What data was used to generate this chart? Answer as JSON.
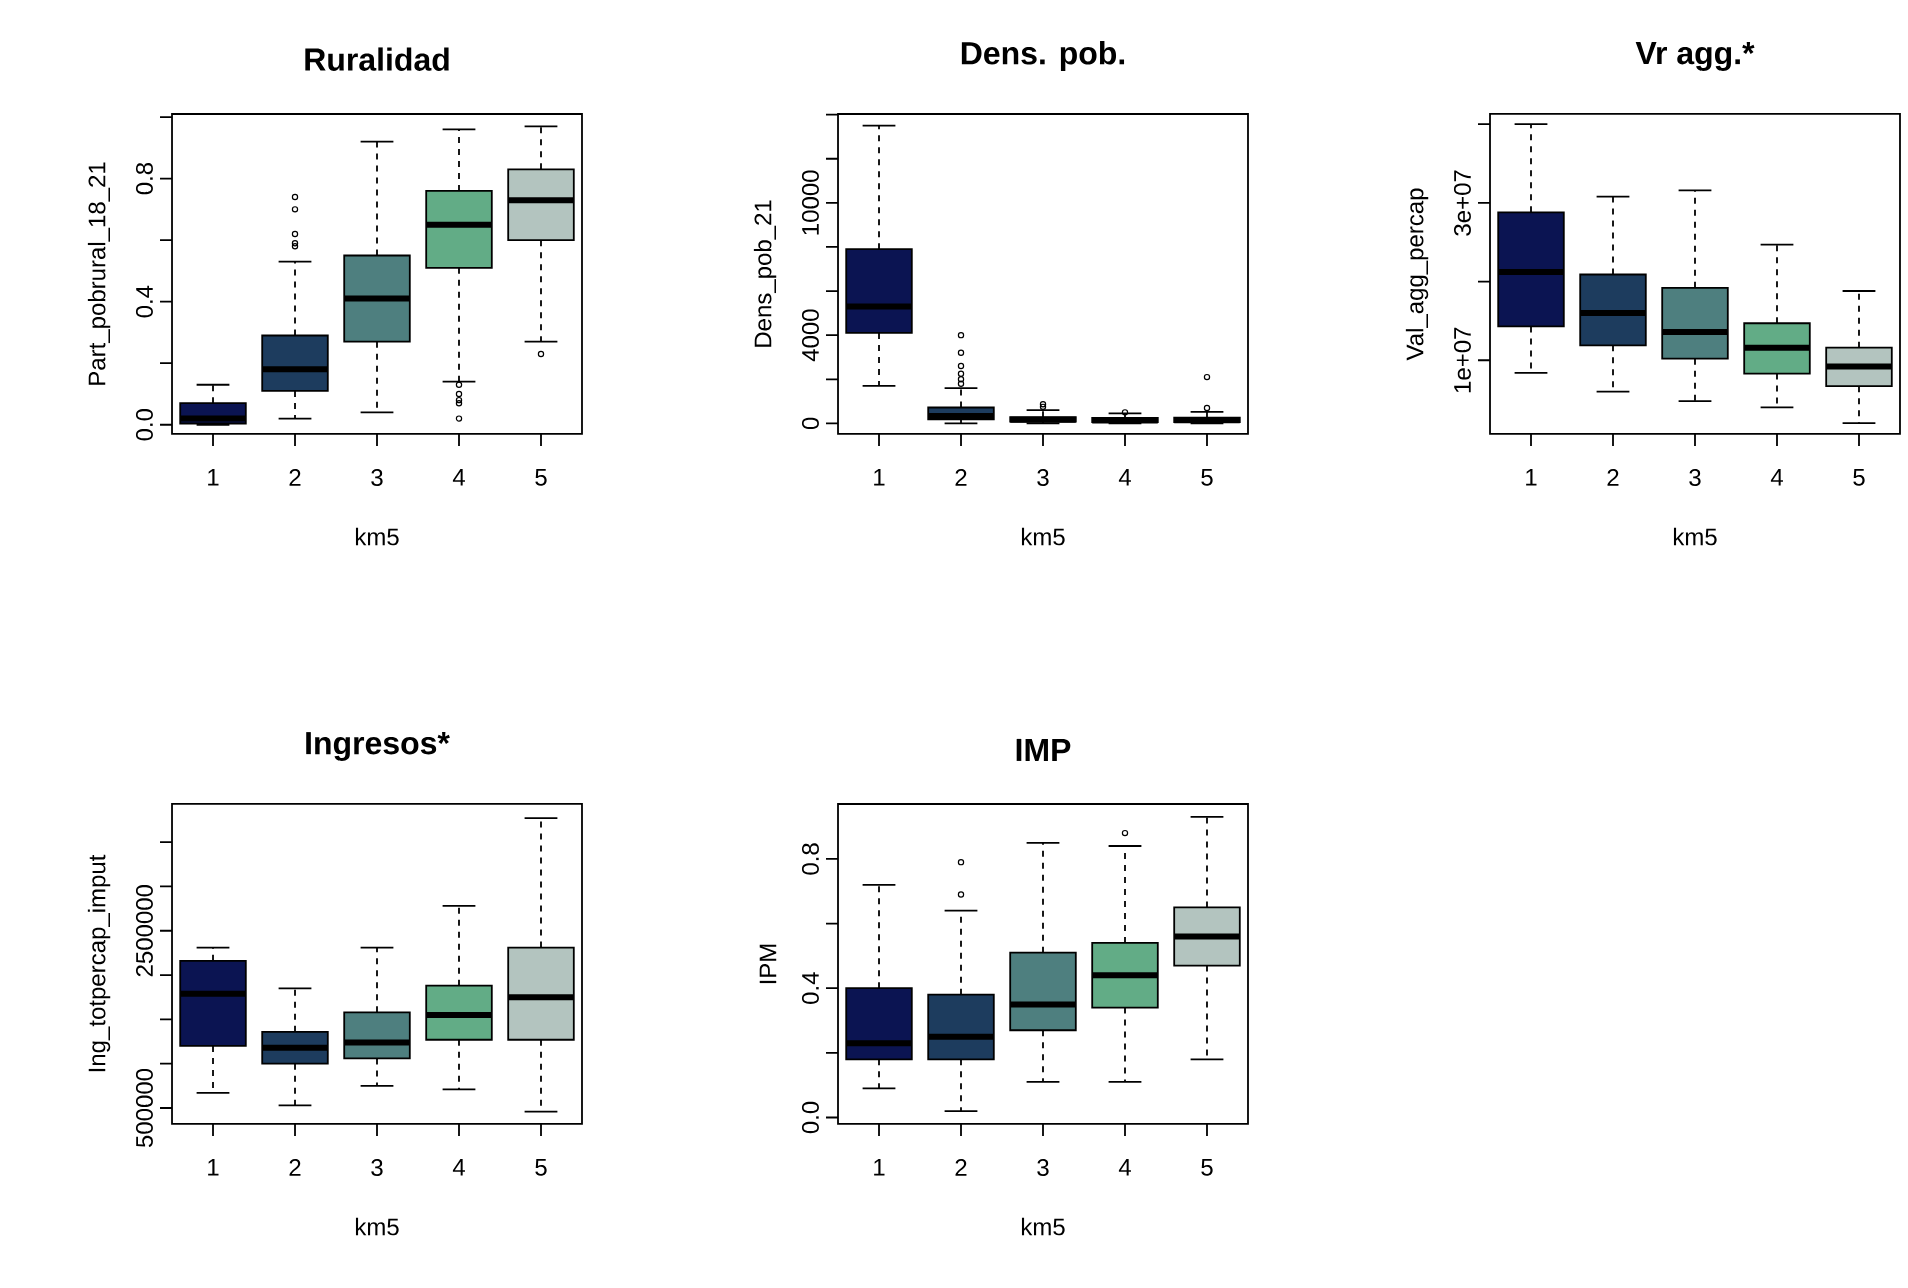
{
  "chart_data": [
    {
      "type": "box",
      "title": "Ruralidad",
      "xlabel": "km5",
      "ylabel": "Part_pobrural_18_21",
      "categories": [
        "1",
        "2",
        "3",
        "4",
        "5"
      ],
      "colors": [
        "#0b1452",
        "#1d3c5e",
        "#4e7f7f",
        "#62ac86",
        "#b3c4bf"
      ],
      "ylim": [
        -0.03,
        1.01
      ],
      "yticks": [
        {
          "value": 0,
          "label": "0.0"
        },
        {
          "value": 0.2,
          "label": null
        },
        0.4,
        {
          "value": 0.6,
          "label": null
        },
        0.8,
        {
          "value": 1.0,
          "label": null
        }
      ],
      "boxes": [
        {
          "low": 0,
          "q1": 0.004,
          "median": 0.02,
          "q3": 0.07,
          "high": 0.13
        },
        {
          "low": 0.02,
          "q1": 0.11,
          "median": 0.18,
          "q3": 0.29,
          "high": 0.53,
          "outliers": [
            0.58,
            0.59,
            0.62,
            0.7,
            0.74
          ]
        },
        {
          "low": 0.04,
          "q1": 0.27,
          "median": 0.41,
          "q3": 0.55,
          "high": 0.92
        },
        {
          "low": 0.14,
          "q1": 0.51,
          "median": 0.65,
          "q3": 0.76,
          "high": 0.96,
          "outliers": [
            0.13,
            0.1,
            0.08,
            0.07,
            0.02
          ]
        },
        {
          "low": 0.27,
          "q1": 0.6,
          "median": 0.73,
          "q3": 0.83,
          "high": 0.97,
          "outliers": [
            0.23
          ]
        }
      ]
    },
    {
      "type": "box",
      "title": "Dens. pob.",
      "xlabel": "km5",
      "ylabel": "Dens_pob_21",
      "categories": [
        "1",
        "2",
        "3",
        "4",
        "5"
      ],
      "colors": [
        "#0b1452",
        "#1d3c5e",
        "#4e7f7f",
        "#62ac86",
        "#b3c4bf"
      ],
      "ylim": [
        -480,
        14030
      ],
      "yticks": [
        0,
        {
          "value": 2000,
          "label": null
        },
        4000,
        {
          "value": 6000,
          "label": null
        },
        {
          "value": 8000,
          "label": null
        },
        10000,
        {
          "value": 12000,
          "label": null
        },
        {
          "value": 14000,
          "label": null
        }
      ],
      "boxes": [
        {
          "low": 1700,
          "q1": 4100,
          "median": 5300,
          "q3": 7900,
          "high": 13500
        },
        {
          "low": 0,
          "q1": 180,
          "median": 330,
          "q3": 720,
          "high": 1600,
          "outliers": [
            1800,
            2000,
            2250,
            2600,
            3200,
            4000
          ]
        },
        {
          "low": 0,
          "q1": 80,
          "median": 170,
          "q3": 280,
          "high": 600,
          "outliers": [
            750,
            870
          ]
        },
        {
          "low": 0,
          "q1": 60,
          "median": 130,
          "q3": 250,
          "high": 450,
          "outliers": [
            500
          ]
        },
        {
          "low": 0,
          "q1": 60,
          "median": 140,
          "q3": 260,
          "high": 520,
          "outliers": [
            700,
            2100
          ]
        }
      ]
    },
    {
      "type": "box",
      "title": "Vr agg.*",
      "xlabel": "km5",
      "ylabel": "Val_agg_percap",
      "categories": [
        "1",
        "2",
        "3",
        "4",
        "5"
      ],
      "colors": [
        "#0b1452",
        "#1d3c5e",
        "#4e7f7f",
        "#62ac86",
        "#b3c4bf"
      ],
      "ylim": [
        630000,
        41300000
      ],
      "yticks": [
        {
          "value": 10000000,
          "label": "1e+07"
        },
        {
          "value": 20000000,
          "label": null
        },
        {
          "value": 30000000,
          "label": "3e+07"
        },
        {
          "value": 40000000,
          "label": null
        }
      ],
      "boxes": [
        {
          "low": 8400000,
          "q1": 14300000,
          "median": 21200000,
          "q3": 28800000,
          "high": 40000000
        },
        {
          "low": 6000000,
          "q1": 11900000,
          "median": 16000000,
          "q3": 20900000,
          "high": 30800000
        },
        {
          "low": 4800000,
          "q1": 10200000,
          "median": 13600000,
          "q3": 19200000,
          "high": 31600000
        },
        {
          "low": 4000000,
          "q1": 8300000,
          "median": 11600000,
          "q3": 14700000,
          "high": 24700000
        },
        {
          "low": 2000000,
          "q1": 6700000,
          "median": 9200000,
          "q3": 11600000,
          "high": 18800000
        }
      ]
    },
    {
      "type": "box",
      "title": "Ingresos*",
      "xlabel": "km5",
      "ylabel": "Ing_totpercap_imput",
      "categories": [
        "1",
        "2",
        "3",
        "4",
        "5"
      ],
      "colors": [
        "#0b1452",
        "#1d3c5e",
        "#4e7f7f",
        "#62ac86",
        "#b3c4bf"
      ],
      "ylim": [
        320000,
        3930000
      ],
      "yticks": [
        500000,
        {
          "value": 1000000,
          "label": null
        },
        {
          "value": 1500000,
          "label": null
        },
        {
          "value": 2000000,
          "label": null
        },
        2500000,
        {
          "value": 3000000,
          "label": null
        },
        {
          "value": 3500000,
          "label": null
        }
      ],
      "boxes": [
        {
          "low": 670000,
          "q1": 1200000,
          "median": 1790000,
          "q3": 2160000,
          "high": 2310000
        },
        {
          "low": 530000,
          "q1": 1000000,
          "median": 1180000,
          "q3": 1360000,
          "high": 1850000
        },
        {
          "low": 750000,
          "q1": 1060000,
          "median": 1240000,
          "q3": 1580000,
          "high": 2310000
        },
        {
          "low": 710000,
          "q1": 1270000,
          "median": 1550000,
          "q3": 1880000,
          "high": 2780000
        },
        {
          "low": 460000,
          "q1": 1270000,
          "median": 1750000,
          "q3": 2310000,
          "high": 3770000
        }
      ]
    },
    {
      "type": "box",
      "title": "IMP",
      "xlabel": "km5",
      "ylabel": "IPM",
      "categories": [
        "1",
        "2",
        "3",
        "4",
        "5"
      ],
      "colors": [
        "#0b1452",
        "#1d3c5e",
        "#4e7f7f",
        "#62ac86",
        "#b3c4bf"
      ],
      "ylim": [
        -0.02,
        0.97
      ],
      "yticks": [
        {
          "value": 0,
          "label": "0.0"
        },
        {
          "value": 0.2,
          "label": null
        },
        0.4,
        {
          "value": 0.6,
          "label": null
        },
        0.8
      ],
      "boxes": [
        {
          "low": 0.09,
          "q1": 0.18,
          "median": 0.23,
          "q3": 0.4,
          "high": 0.72
        },
        {
          "low": 0.02,
          "q1": 0.18,
          "median": 0.25,
          "q3": 0.38,
          "high": 0.64,
          "outliers": [
            0.69,
            0.79
          ]
        },
        {
          "low": 0.11,
          "q1": 0.27,
          "median": 0.35,
          "q3": 0.51,
          "high": 0.85
        },
        {
          "low": 0.11,
          "q1": 0.34,
          "median": 0.44,
          "q3": 0.54,
          "high": 0.84,
          "outliers": [
            0.88
          ]
        },
        {
          "low": 0.18,
          "q1": 0.47,
          "median": 0.56,
          "q3": 0.65,
          "high": 0.93
        }
      ]
    }
  ]
}
